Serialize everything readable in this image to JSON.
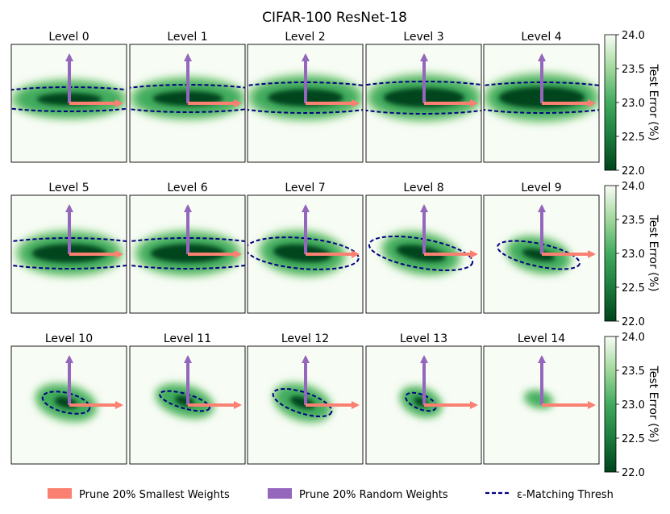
{
  "chart_data": {
    "type": "heatmap",
    "title": "CIFAR-100 ResNet-18",
    "panel_titles": [
      "Level 0",
      "Level 1",
      "Level 2",
      "Level 3",
      "Level 4",
      "Level 5",
      "Level 6",
      "Level 7",
      "Level 8",
      "Level 9",
      "Level 10",
      "Level 11",
      "Level 12",
      "Level 13",
      "Level 14"
    ],
    "colorbar": {
      "label": "Test Error (%)",
      "range": [
        22.0,
        24.0
      ],
      "ticks": [
        "24.0",
        "23.5",
        "23.0",
        "22.5",
        "22.0"
      ]
    },
    "legend": [
      {
        "label": "Prune 20% Smallest Weights",
        "color": "#fa8072"
      },
      {
        "label": "Prune 20% Random Weights",
        "color": "#9467bd"
      },
      {
        "label": "ε-Matching Thresh",
        "color": "#000080"
      }
    ],
    "colors": {
      "low": "#00441b",
      "mid": "#41ab5d",
      "high": "#f7fcf5",
      "threshold": "#000080",
      "smallest": "#fa8072",
      "random": "#9467bd"
    }
  }
}
